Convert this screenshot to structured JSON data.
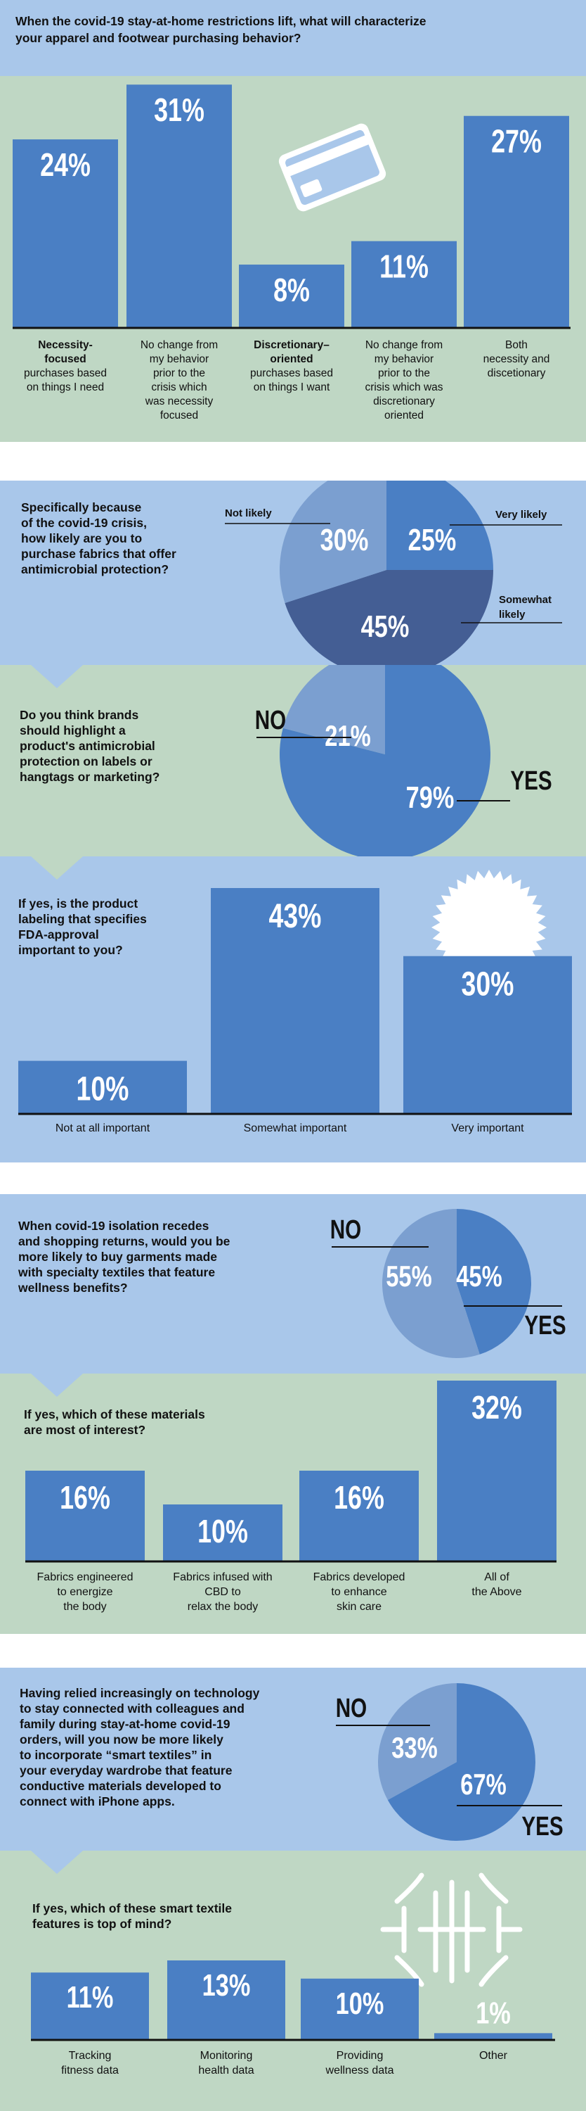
{
  "colors": {
    "light_blue": "#a9c7ea",
    "green": "#bfd7c4",
    "bar_blue": "#4a7fc4",
    "pie_mid": "#7b9fd0",
    "pie_dark": "#445e94",
    "white": "#ffffff"
  },
  "icons": [
    "credit-card-icon",
    "starburst-seal-icon",
    "smart-textile-logo-icon"
  ],
  "section1": {
    "question_lines": [
      "When the covid-19 stay-at-home restrictions lift, what will characterize",
      "your apparel and footwear purchasing behavior?"
    ],
    "chart_data": {
      "type": "bar",
      "categories": [
        "Necessity-focused purchases based on things I need",
        "No change from my behavior prior to the crisis which was necessity focused",
        "Discretionary-oriented purchases based on things I want",
        "No change from my behavior prior to the crisis which was discretionary oriented",
        "Both necessity and discetionary"
      ],
      "values": [
        24,
        31,
        8,
        11,
        27
      ],
      "value_labels": [
        "24%",
        "31%",
        "8%",
        "11%",
        "27%"
      ],
      "ylim": [
        0,
        33
      ]
    },
    "category_lines": [
      [
        {
          "t": "Necessity-",
          "b": true
        },
        {
          "t": "focused",
          "b": true
        },
        {
          "t": "purchases based",
          "b": false
        },
        {
          "t": "on things I need",
          "b": false
        }
      ],
      [
        {
          "t": "No change from",
          "b": false
        },
        {
          "t": "my behavior",
          "b": false
        },
        {
          "t": "prior to the",
          "b": false
        },
        {
          "t": "crisis which",
          "b": false
        },
        {
          "t": "was necessity",
          "b": false
        },
        {
          "t": "focused",
          "b": false
        }
      ],
      [
        {
          "t": "Discretionary–",
          "b": true
        },
        {
          "t": "oriented",
          "b": true
        },
        {
          "t": "purchases based",
          "b": false
        },
        {
          "t": "on things I want",
          "b": false
        }
      ],
      [
        {
          "t": "No change from",
          "b": false
        },
        {
          "t": "my behavior",
          "b": false
        },
        {
          "t": "prior to the",
          "b": false
        },
        {
          "t": "crisis which was",
          "b": false
        },
        {
          "t": "discretionary",
          "b": false
        },
        {
          "t": "oriented",
          "b": false
        }
      ],
      [
        {
          "t": "Both",
          "b": false
        },
        {
          "t": "necessity and",
          "b": false
        },
        {
          "t": "discetionary",
          "b": false
        }
      ]
    ]
  },
  "section2": {
    "question_lines": [
      "Specifically because",
      "of the covid-19 crisis,",
      "how likely are you to",
      "purchase fabrics that offer",
      "antimicrobial protection?"
    ],
    "chart_data": {
      "type": "pie",
      "categories": [
        "Very likely",
        "Somewhat likely",
        "Not likely"
      ],
      "values": [
        25,
        45,
        30
      ],
      "value_labels": [
        "25%",
        "45%",
        "30%"
      ]
    },
    "slice_label_lines": [
      [
        "Very likely"
      ],
      [
        "Somewhat",
        "likely"
      ],
      [
        "Not likely"
      ]
    ]
  },
  "section3": {
    "question_lines": [
      "Do you think brands",
      "should highlight a",
      "product's antimicrobial",
      "protection on labels or",
      "hangtags or marketing?"
    ],
    "chart_data": {
      "type": "pie",
      "categories": [
        "YES",
        "NO"
      ],
      "values": [
        79,
        21
      ],
      "value_labels": [
        "79%",
        "21%"
      ]
    }
  },
  "section4": {
    "question_lines": [
      "If yes, is the product",
      "labeling that specifies",
      "FDA-approval",
      "important to you?"
    ],
    "chart_data": {
      "type": "bar",
      "categories": [
        "Not at all important",
        "Somewhat important",
        "Very important"
      ],
      "values": [
        10,
        43,
        30
      ],
      "value_labels": [
        "10%",
        "43%",
        "30%"
      ],
      "ylim": [
        0,
        43
      ]
    }
  },
  "section5": {
    "question_lines": [
      "When covid-19 isolation recedes",
      "and shopping returns, would you be",
      "more likely to buy garments made",
      "with specialty textiles that feature",
      "wellness benefits?"
    ],
    "chart_data": {
      "type": "pie",
      "categories": [
        "YES",
        "NO"
      ],
      "values": [
        45,
        55
      ],
      "value_labels": [
        "45%",
        "55%"
      ]
    }
  },
  "section6": {
    "question_lines": [
      "If yes, which of these materials",
      "are most of interest?"
    ],
    "chart_data": {
      "type": "bar",
      "categories": [
        "Fabrics engineered to energize the body",
        "Fabrics infused with CBD to relax the body",
        "Fabrics developed to enhance skin care",
        "All of the Above"
      ],
      "values": [
        16,
        10,
        16,
        32
      ],
      "value_labels": [
        "16%",
        "10%",
        "16%",
        "32%"
      ],
      "ylim": [
        0,
        32
      ]
    },
    "category_lines": [
      [
        "Fabrics engineered",
        "to energize",
        "the body"
      ],
      [
        "Fabrics infused with",
        "CBD to",
        "relax the body"
      ],
      [
        "Fabrics developed",
        "to enhance",
        "skin care"
      ],
      [
        "All of",
        "the Above"
      ]
    ]
  },
  "section7": {
    "question_lines": [
      "Having relied increasingly on technology",
      "to stay connected with colleagues and",
      "family during stay-at-home covid-19",
      "orders, will you now be more likely",
      "to incorporate “smart textiles” in",
      "your everyday wardrobe that feature",
      "conductive materials developed to",
      "connect with iPhone apps."
    ],
    "chart_data": {
      "type": "pie",
      "categories": [
        "YES",
        "NO"
      ],
      "values": [
        67,
        33
      ],
      "value_labels": [
        "67%",
        "33%"
      ]
    }
  },
  "section8": {
    "question_lines": [
      "If yes, which of these smart textile",
      "features is top of mind?"
    ],
    "chart_data": {
      "type": "bar",
      "categories": [
        "Tracking fitness data",
        "Monitoring health data",
        "Providing wellness data",
        "Other"
      ],
      "values": [
        11,
        13,
        10,
        1
      ],
      "value_labels": [
        "11%",
        "13%",
        "10%",
        "1%"
      ],
      "ylim": [
        0,
        13
      ]
    },
    "category_lines": [
      [
        "Tracking",
        "fitness data"
      ],
      [
        "Monitoring",
        "health data"
      ],
      [
        "Providing",
        "wellness data"
      ],
      [
        "Other"
      ]
    ]
  }
}
